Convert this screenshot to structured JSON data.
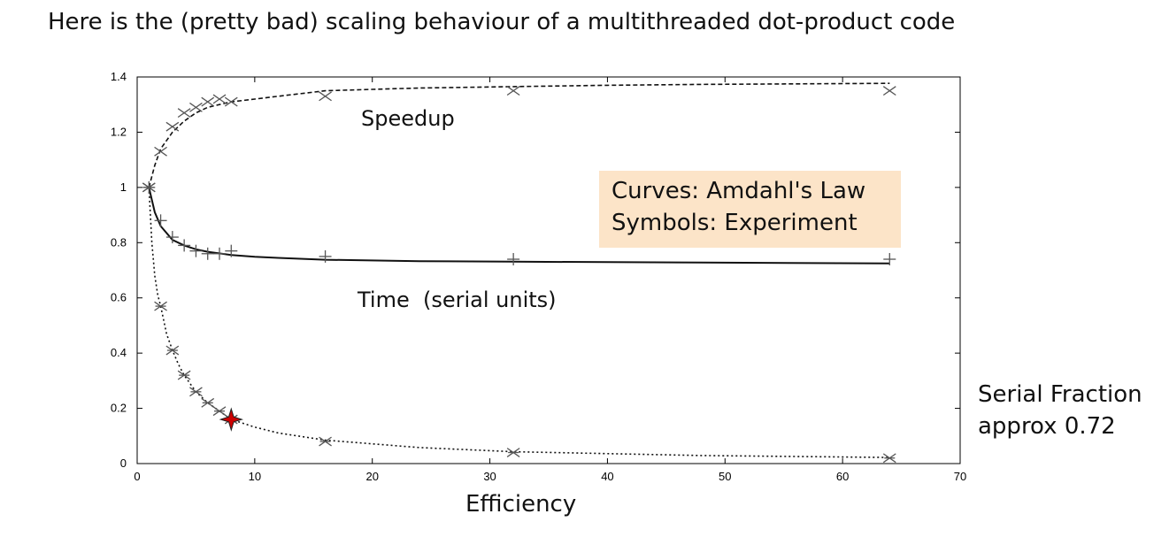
{
  "page": {
    "title": "Here is the (pretty bad) scaling behaviour of a multithreaded dot-product code"
  },
  "legend": {
    "line1": "Curves: Amdahl's Law",
    "line2": "Symbols: Experiment",
    "background": "#fce4c8"
  },
  "note": {
    "line1": "Serial Fraction",
    "line2": "approx 0.72"
  },
  "chart_data": {
    "type": "line",
    "xlabel": "Efficiency",
    "ylabel": "",
    "xlim": [
      0,
      70
    ],
    "ylim": [
      0,
      1.4
    ],
    "xticks": [
      0,
      10,
      20,
      30,
      40,
      50,
      60,
      70
    ],
    "yticks": [
      0,
      0.2,
      0.4,
      0.6,
      0.8,
      1,
      1.2,
      1.4
    ],
    "grid": false,
    "annotations": {
      "speedup": "Speedup",
      "time": "Time  (serial units)"
    },
    "series": [
      {
        "key": "speedup",
        "curve_style": "dashed",
        "marker": "x",
        "curve": {
          "x": [
            1,
            1.5,
            2,
            3,
            4,
            5,
            6,
            7,
            8,
            10,
            12,
            16,
            20,
            24,
            32,
            40,
            48,
            56,
            64
          ],
          "y": [
            1.0,
            1.08,
            1.14,
            1.2,
            1.24,
            1.27,
            1.29,
            1.3,
            1.31,
            1.32,
            1.33,
            1.35,
            1.355,
            1.36,
            1.365,
            1.37,
            1.373,
            1.375,
            1.377
          ]
        },
        "points": {
          "x": [
            1,
            2,
            3,
            4,
            5,
            6,
            7,
            8,
            16,
            32,
            64
          ],
          "y": [
            1.0,
            1.13,
            1.22,
            1.27,
            1.29,
            1.31,
            1.32,
            1.31,
            1.33,
            1.35,
            1.35
          ]
        }
      },
      {
        "key": "time",
        "curve_style": "solid",
        "marker": "+",
        "curve": {
          "x": [
            1,
            1.5,
            2,
            3,
            4,
            5,
            6,
            8,
            10,
            12,
            16,
            24,
            32,
            48,
            64
          ],
          "y": [
            1.0,
            0.91,
            0.86,
            0.81,
            0.79,
            0.776,
            0.767,
            0.755,
            0.749,
            0.745,
            0.738,
            0.733,
            0.731,
            0.728,
            0.725
          ]
        },
        "points": {
          "x": [
            1,
            2,
            3,
            4,
            5,
            6,
            7,
            8,
            16,
            32,
            64
          ],
          "y": [
            1.0,
            0.88,
            0.82,
            0.79,
            0.77,
            0.76,
            0.76,
            0.77,
            0.75,
            0.74,
            0.74
          ]
        }
      },
      {
        "key": "efficiency",
        "curve_style": "dotted",
        "marker": "asterisk",
        "curve": {
          "x": [
            1,
            1.25,
            1.5,
            1.75,
            2,
            2.5,
            3,
            3.5,
            4,
            5,
            6,
            7,
            8,
            10,
            12,
            16,
            24,
            32,
            48,
            64
          ],
          "y": [
            1.0,
            0.8,
            0.68,
            0.61,
            0.57,
            0.47,
            0.41,
            0.36,
            0.32,
            0.26,
            0.22,
            0.19,
            0.16,
            0.132,
            0.111,
            0.085,
            0.058,
            0.043,
            0.029,
            0.022
          ]
        },
        "points": {
          "x": [
            1,
            2,
            3,
            4,
            5,
            6,
            7,
            8,
            16,
            32,
            64
          ],
          "y": [
            1.0,
            0.57,
            0.41,
            0.32,
            0.26,
            0.22,
            0.19,
            0.16,
            0.08,
            0.04,
            0.02
          ]
        }
      }
    ],
    "highlight": {
      "x": 8,
      "y": 0.16,
      "color": "#cc0000"
    }
  }
}
